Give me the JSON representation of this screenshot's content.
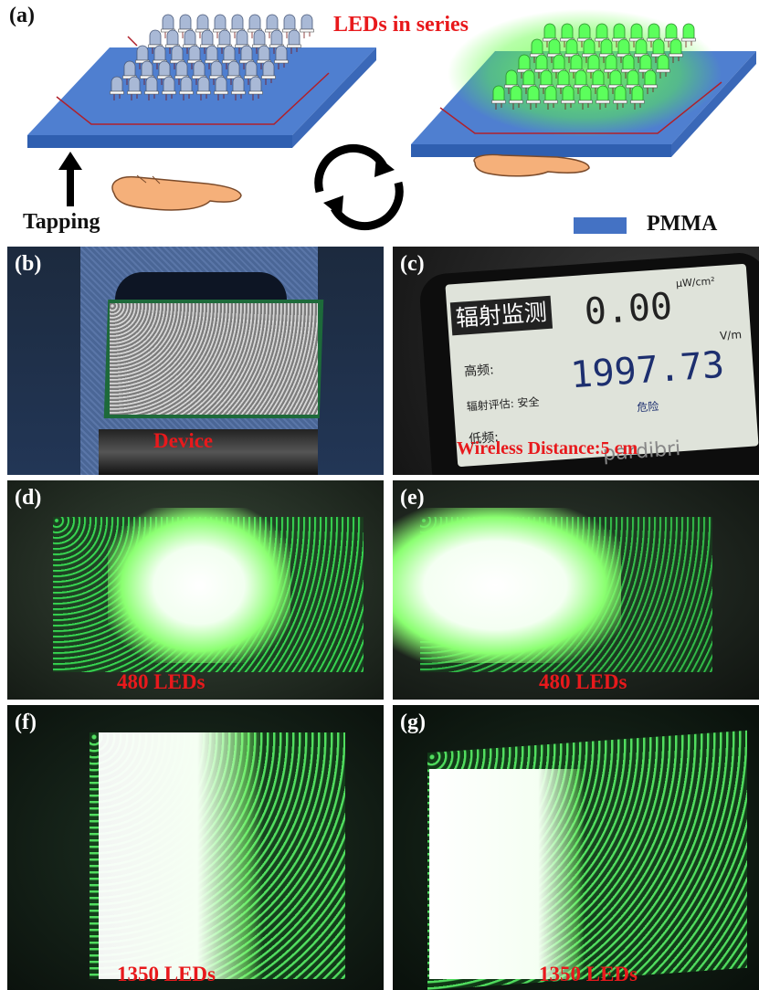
{
  "panel_a": {
    "label": "(a)",
    "title": "LEDs in series",
    "action": "Tapping",
    "legend": {
      "label": "PMMA",
      "color": "#4472c4"
    }
  },
  "panel_b": {
    "label": "(b)",
    "caption": "Device"
  },
  "panel_c": {
    "label": "(c)",
    "caption": "Wireless Distance:5 cm",
    "meter": {
      "title": "辐射监测",
      "value_top": "0.00",
      "unit_top": "μW/cm²",
      "value_bottom": "1997.73",
      "unit_bottom": "V/m",
      "high_freq": "高频:",
      "assessment": "辐射评估: 安全",
      "low_freq": "低频:",
      "danger": "危险",
      "brand": "pardibri"
    }
  },
  "panel_d": {
    "label": "(d)",
    "caption": "480 LEDs"
  },
  "panel_e": {
    "label": "(e)",
    "caption": "480 LEDs"
  },
  "panel_f": {
    "label": "(f)",
    "caption": "1350 LEDs"
  },
  "panel_g": {
    "label": "(g)",
    "caption": "1350 LEDs"
  },
  "colors": {
    "led_green": "#5cff5c",
    "caption_red": "#e8191c",
    "pmma_blue": "#4472c4"
  }
}
